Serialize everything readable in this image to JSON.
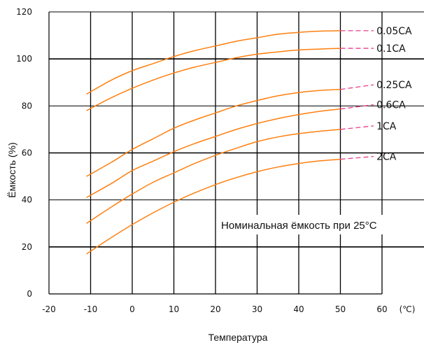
{
  "chart_data": {
    "type": "line",
    "title": "",
    "xlabel": "Температура",
    "ylabel": "Ёмкость (%)",
    "x_unit_label": "(℃)",
    "xlim": [
      -20,
      60
    ],
    "ylim": [
      0,
      120
    ],
    "x_ticks": [
      "-20",
      "-10",
      "0",
      "10",
      "20",
      "30",
      "40",
      "50",
      "60"
    ],
    "y_ticks": [
      "0",
      "20",
      "40",
      "60",
      "80",
      "100",
      "120"
    ],
    "grid": true,
    "annotation": "Номинальная ёмкость при 25°C",
    "colors": {
      "line": "#ff7f0e",
      "extrapolation": "#e83e8c"
    },
    "series": [
      {
        "name": "0.05CA",
        "x": [
          -11,
          -5,
          0,
          5,
          10,
          15,
          20,
          25,
          30,
          35,
          40,
          45,
          50
        ],
        "y": [
          85,
          91,
          95,
          98,
          101,
          103.5,
          105.5,
          107.5,
          109,
          110.5,
          111.3,
          111.8,
          112
        ],
        "extrap_x": [
          50,
          58
        ],
        "extrap_y": [
          112,
          112
        ]
      },
      {
        "name": "0.1CA",
        "x": [
          -11,
          -5,
          0,
          5,
          10,
          15,
          20,
          25,
          30,
          35,
          40,
          45,
          50
        ],
        "y": [
          78,
          83.5,
          87.5,
          91,
          94,
          96.5,
          98.5,
          100.5,
          102,
          103,
          103.8,
          104.2,
          104.5
        ],
        "extrap_x": [
          50,
          58
        ],
        "extrap_y": [
          104.5,
          104.5
        ]
      },
      {
        "name": "0.25CA",
        "x": [
          -11,
          -5,
          0,
          5,
          10,
          15,
          20,
          25,
          30,
          35,
          40,
          45,
          50
        ],
        "y": [
          50,
          56,
          61.5,
          66,
          70.5,
          74,
          77,
          80,
          82.3,
          84.3,
          85.7,
          86.6,
          87
        ],
        "extrap_x": [
          50,
          58
        ],
        "extrap_y": [
          87,
          89
        ]
      },
      {
        "name": "0.6CA",
        "x": [
          -11,
          -5,
          0,
          5,
          10,
          15,
          20,
          25,
          30,
          35,
          40,
          45,
          50
        ],
        "y": [
          41,
          47,
          52.5,
          56.5,
          60.5,
          64,
          67,
          70,
          72.5,
          74.6,
          76.3,
          77.7,
          78.7
        ],
        "extrap_x": [
          50,
          58
        ],
        "extrap_y": [
          78.7,
          80.5
        ]
      },
      {
        "name": "1CA",
        "x": [
          -11,
          -5,
          0,
          5,
          10,
          15,
          20,
          25,
          30,
          35,
          40,
          45,
          50
        ],
        "y": [
          30,
          37,
          42.5,
          47.5,
          51.5,
          55.5,
          59,
          62,
          64.8,
          66.8,
          68.2,
          69.2,
          70
        ],
        "extrap_x": [
          50,
          58
        ],
        "extrap_y": [
          70,
          71.5
        ]
      },
      {
        "name": "2CA",
        "x": [
          -11,
          -5,
          0,
          5,
          10,
          15,
          20,
          25,
          30,
          35,
          40,
          45,
          50
        ],
        "y": [
          17,
          24,
          29.5,
          34.5,
          39,
          43,
          46.5,
          49.5,
          52,
          54,
          55.5,
          56.6,
          57.3
        ],
        "extrap_x": [
          50,
          58
        ],
        "extrap_y": [
          57.3,
          58.5
        ]
      }
    ]
  }
}
